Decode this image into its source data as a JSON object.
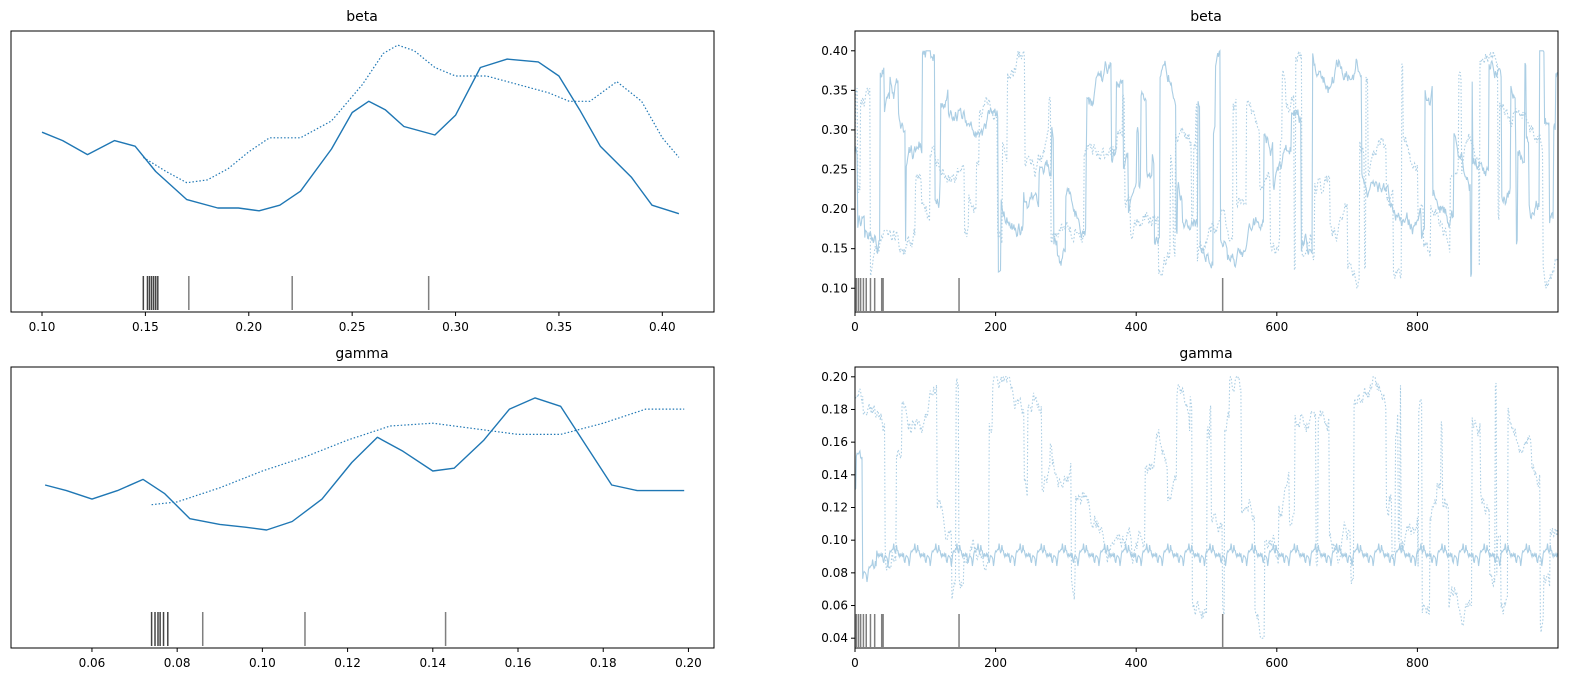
{
  "chart_data": [
    {
      "type": "line",
      "panel": "density",
      "title": "beta",
      "xlim": [
        0.085,
        0.425
      ],
      "xticks": [
        "0.10",
        "0.15",
        "0.20",
        "0.25",
        "0.30",
        "0.35",
        "0.40"
      ],
      "yticks": [],
      "series": [
        {
          "style": "solid",
          "x": [
            0.1,
            0.11,
            0.122,
            0.135,
            0.145,
            0.155,
            0.17,
            0.185,
            0.195,
            0.205,
            0.215,
            0.225,
            0.24,
            0.25,
            0.258,
            0.266,
            0.275,
            0.29,
            0.3,
            0.312,
            0.325,
            0.34,
            0.35,
            0.36,
            0.37,
            0.385,
            0.395,
            0.408
          ],
          "y": [
            0.64,
            0.61,
            0.56,
            0.61,
            0.59,
            0.5,
            0.4,
            0.37,
            0.37,
            0.36,
            0.38,
            0.43,
            0.58,
            0.71,
            0.75,
            0.72,
            0.66,
            0.63,
            0.7,
            0.87,
            0.9,
            0.89,
            0.84,
            0.72,
            0.59,
            0.48,
            0.38,
            0.35
          ]
        },
        {
          "style": "dotted",
          "x": [
            0.149,
            0.16,
            0.17,
            0.18,
            0.19,
            0.2,
            0.21,
            0.225,
            0.24,
            0.255,
            0.265,
            0.272,
            0.28,
            0.29,
            0.3,
            0.315,
            0.33,
            0.345,
            0.355,
            0.365,
            0.378,
            0.39,
            0.4,
            0.408
          ],
          "y": [
            0.55,
            0.5,
            0.46,
            0.47,
            0.51,
            0.57,
            0.62,
            0.62,
            0.68,
            0.81,
            0.92,
            0.95,
            0.93,
            0.87,
            0.84,
            0.84,
            0.81,
            0.78,
            0.75,
            0.75,
            0.82,
            0.75,
            0.62,
            0.55
          ]
        }
      ],
      "rug": [
        0.149,
        0.151,
        0.152,
        0.153,
        0.154,
        0.155,
        0.156,
        0.171,
        0.221,
        0.287
      ]
    },
    {
      "type": "line",
      "panel": "trace",
      "title": "beta",
      "xlim": [
        0,
        1000
      ],
      "ylim": [
        0.07,
        0.425
      ],
      "xticks": [
        0,
        200,
        400,
        600,
        800
      ],
      "yticks": [
        "0.10",
        "0.15",
        "0.20",
        "0.25",
        "0.30",
        "0.35",
        "0.40"
      ],
      "series": [
        {
          "style": "solid"
        },
        {
          "style": "dotted"
        }
      ],
      "rug": [
        2,
        5,
        8,
        12,
        16,
        22,
        28,
        38,
        40,
        148,
        523
      ]
    },
    {
      "type": "line",
      "panel": "density",
      "title": "gamma",
      "xlim": [
        0.041,
        0.206
      ],
      "xticks": [
        "0.06",
        "0.08",
        "0.10",
        "0.12",
        "0.14",
        "0.16",
        "0.18",
        "0.20"
      ],
      "yticks": [],
      "series": [
        {
          "style": "solid",
          "x": [
            0.049,
            0.054,
            0.06,
            0.066,
            0.072,
            0.077,
            0.083,
            0.09,
            0.096,
            0.101,
            0.107,
            0.114,
            0.121,
            0.127,
            0.133,
            0.14,
            0.145,
            0.152,
            0.158,
            0.164,
            0.17,
            0.176,
            0.182,
            0.188,
            0.199
          ],
          "y": [
            0.58,
            0.56,
            0.53,
            0.56,
            0.6,
            0.55,
            0.46,
            0.44,
            0.43,
            0.42,
            0.45,
            0.53,
            0.66,
            0.75,
            0.7,
            0.63,
            0.64,
            0.74,
            0.85,
            0.89,
            0.86,
            0.72,
            0.58,
            0.56,
            0.56
          ]
        },
        {
          "style": "dotted",
          "x": [
            0.074,
            0.08,
            0.09,
            0.1,
            0.11,
            0.12,
            0.13,
            0.14,
            0.15,
            0.16,
            0.17,
            0.18,
            0.19,
            0.199
          ],
          "y": [
            0.51,
            0.52,
            0.57,
            0.63,
            0.68,
            0.74,
            0.79,
            0.8,
            0.78,
            0.76,
            0.76,
            0.8,
            0.85,
            0.85
          ]
        }
      ],
      "rug": [
        0.074,
        0.0748,
        0.0755,
        0.076,
        0.0768,
        0.0778,
        0.086,
        0.11,
        0.143
      ]
    },
    {
      "type": "line",
      "panel": "trace",
      "title": "gamma",
      "xlim": [
        0,
        1000
      ],
      "ylim": [
        0.034,
        0.206
      ],
      "xticks": [
        0,
        200,
        400,
        600,
        800
      ],
      "yticks": [
        "0.04",
        "0.06",
        "0.08",
        "0.10",
        "0.12",
        "0.14",
        "0.16",
        "0.18",
        "0.20"
      ],
      "series": [
        {
          "style": "solid"
        },
        {
          "style": "dotted"
        }
      ],
      "rug": [
        2,
        5,
        8,
        12,
        16,
        22,
        28,
        38,
        40,
        148,
        523
      ]
    }
  ],
  "colors": {
    "line": "#1f77b4",
    "trace_line": "#a6cbe3",
    "rug": "#7f7f7f",
    "rug_dark": "#444444",
    "axis": "#000000"
  }
}
